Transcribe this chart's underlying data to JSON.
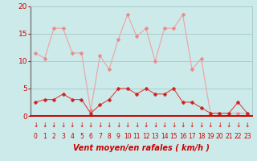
{
  "x": [
    0,
    1,
    2,
    3,
    4,
    5,
    6,
    7,
    8,
    9,
    10,
    11,
    12,
    13,
    14,
    15,
    16,
    17,
    18,
    19,
    20,
    21,
    22,
    23
  ],
  "y_mean": [
    2.5,
    3.0,
    3.0,
    4.0,
    3.0,
    3.0,
    0.5,
    2.0,
    3.0,
    5.0,
    5.0,
    4.0,
    5.0,
    4.0,
    4.0,
    5.0,
    2.5,
    2.5,
    1.5,
    0.5,
    0.5,
    0.5,
    2.5,
    0.5
  ],
  "y_gust": [
    11.5,
    10.5,
    16.0,
    16.0,
    11.5,
    11.5,
    1.0,
    11.0,
    8.5,
    14.0,
    18.5,
    14.5,
    16.0,
    10.0,
    16.0,
    16.0,
    18.5,
    8.5,
    10.5,
    0.5,
    0.5,
    0.5,
    0.5,
    0.5
  ],
  "bg_color": "#cceaea",
  "grid_color": "#aacccc",
  "line_color_mean": "#dd4444",
  "line_color_gust": "#f0a0a0",
  "marker_color_mean": "#cc2222",
  "marker_color_gust": "#ee8888",
  "xlabel": "Vent moyen/en rafales ( km/h )",
  "xlabel_color": "#cc0000",
  "tick_color": "#cc0000",
  "arrow_color": "#cc0000",
  "ylim": [
    0,
    20
  ],
  "yticks": [
    0,
    5,
    10,
    15,
    20
  ],
  "xlim": [
    -0.5,
    23.5
  ]
}
